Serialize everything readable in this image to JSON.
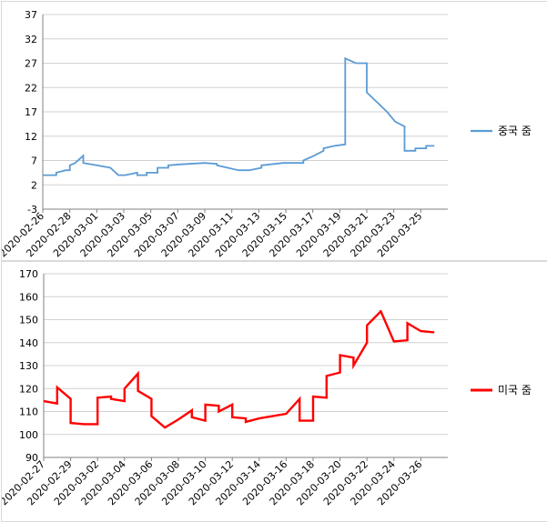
{
  "chart_data": [
    {
      "type": "line",
      "title": "",
      "xlabel": "",
      "ylabel": "",
      "ylim": [
        -3,
        37
      ],
      "yticks": [
        -3,
        2,
        7,
        12,
        17,
        22,
        27,
        32,
        37
      ],
      "xlim": [
        "2020-02-26",
        "2020-03-27"
      ],
      "xticks": [
        "2020-02-26",
        "2020-02-28",
        "2020-03-01",
        "2020-03-03",
        "2020-03-05",
        "2020-03-07",
        "2020-03-09",
        "2020-03-11",
        "2020-03-13",
        "2020-03-15",
        "2020-03-17",
        "2020-03-19",
        "2020-03-21",
        "2020-03-23",
        "2020-03-25"
      ],
      "grid": true,
      "legend_position": "right",
      "series": [
        {
          "name": "중국 줌",
          "color": "#5b9bd5",
          "x": [
            "2020-02-26",
            "2020-02-27",
            "2020-02-27",
            "2020-02-27.7",
            "2020-02-28",
            "2020-02-28",
            "2020-02-28.4",
            "2020-02-29",
            "2020-02-29",
            "2020-03-01",
            "2020-03-02",
            "2020-03-02.6",
            "2020-03-02.6",
            "2020-03-03.1",
            "2020-03-04",
            "2020-03-04",
            "2020-03-04.7",
            "2020-03-04.7",
            "2020-03-05.5",
            "2020-03-05.5",
            "2020-03-06.3",
            "2020-03-06.3",
            "2020-03-07.1",
            "2020-03-09",
            "2020-03-09",
            "2020-03-09.9",
            "2020-03-09.9",
            "2020-03-10.7",
            "2020-03-10.7",
            "2020-03-11.5",
            "2020-03-11.5",
            "2020-03-12.3",
            "2020-03-12.3",
            "2020-03-13.2",
            "2020-03-13.2",
            "2020-03-14.8",
            "2020-03-14.8",
            "2020-03-16.3",
            "2020-03-16.3",
            "2020-03-17.1",
            "2020-03-17.8",
            "2020-03-17.8",
            "2020-03-18.6",
            "2020-03-19.4",
            "2020-03-19.4",
            "2020-03-20.2",
            "2020-03-21",
            "2020-03-21",
            "2020-03-22.5",
            "2020-03-23.1",
            "2020-03-23.1",
            "2020-03-23.8",
            "2020-03-23.8",
            "2020-03-24.6",
            "2020-03-24.6",
            "2020-03-25.4",
            "2020-03-25.4",
            "2020-03-26"
          ],
          "values": [
            4,
            4,
            4.5,
            5,
            5,
            6,
            6.5,
            8,
            6.5,
            6,
            5.5,
            4,
            4,
            4,
            4.5,
            4,
            4,
            4.5,
            4.5,
            5.5,
            5.5,
            6,
            6.2,
            6.5,
            6.5,
            6.3,
            6,
            5.5,
            5.5,
            5,
            5,
            5,
            5,
            5.5,
            6,
            6.5,
            6.5,
            6.5,
            7,
            8,
            9,
            9.5,
            10,
            10.3,
            28,
            27,
            27,
            21,
            17,
            15,
            15,
            14,
            9,
            9,
            9.5,
            9.5,
            10,
            10
          ]
        }
      ]
    },
    {
      "type": "line",
      "title": "",
      "xlabel": "",
      "ylabel": "",
      "ylim": [
        90,
        170
      ],
      "yticks": [
        90,
        100,
        110,
        120,
        130,
        140,
        150,
        160,
        170
      ],
      "xlim": [
        "2020-02-27",
        "2020-03-28"
      ],
      "xticks": [
        "2020-02-27",
        "2020-02-29",
        "2020-03-02",
        "2020-03-04",
        "2020-03-06",
        "2020-03-08",
        "2020-03-10",
        "2020-03-12",
        "2020-03-14",
        "2020-03-16",
        "2020-03-18",
        "2020-03-20",
        "2020-03-22",
        "2020-03-24",
        "2020-03-26"
      ],
      "grid": true,
      "legend_position": "right",
      "series": [
        {
          "name": "미국 줌",
          "color": "#ff0000",
          "x": [
            "2020-02-27",
            "2020-02-28",
            "2020-02-28",
            "2020-02-29",
            "2020-02-29",
            "2020-03-01",
            "2020-03-02",
            "2020-03-02",
            "2020-03-03",
            "2020-03-03",
            "2020-03-04",
            "2020-03-04",
            "2020-03-05",
            "2020-03-05",
            "2020-03-06",
            "2020-03-06",
            "2020-03-07",
            "2020-03-08",
            "2020-03-09",
            "2020-03-09",
            "2020-03-10",
            "2020-03-10",
            "2020-03-11",
            "2020-03-11",
            "2020-03-12",
            "2020-03-12",
            "2020-03-13",
            "2020-03-13",
            "2020-03-14",
            "2020-03-16",
            "2020-03-17",
            "2020-03-17",
            "2020-03-18",
            "2020-03-18",
            "2020-03-19",
            "2020-03-19",
            "2020-03-20",
            "2020-03-20",
            "2020-03-21",
            "2020-03-21",
            "2020-03-22",
            "2020-03-22",
            "2020-03-23",
            "2020-03-23",
            "2020-03-24",
            "2020-03-24",
            "2020-03-25",
            "2020-03-25",
            "2020-03-26",
            "2020-03-26",
            "2020-03-27"
          ],
          "values": [
            114.5,
            113.5,
            120.5,
            115.5,
            105,
            104.5,
            104.5,
            116,
            116.5,
            115.5,
            114.5,
            120,
            126.5,
            119,
            115.5,
            108,
            103,
            106.5,
            110.5,
            107.5,
            106,
            113,
            112.5,
            110,
            113,
            107.5,
            107,
            105.5,
            107,
            109,
            115.5,
            106,
            106,
            116.5,
            116,
            125.5,
            127,
            134.5,
            133.5,
            130,
            140,
            147.5,
            153.5,
            154,
            140.5,
            140.5,
            141,
            148.5,
            145,
            145,
            144.5
          ]
        }
      ]
    }
  ]
}
